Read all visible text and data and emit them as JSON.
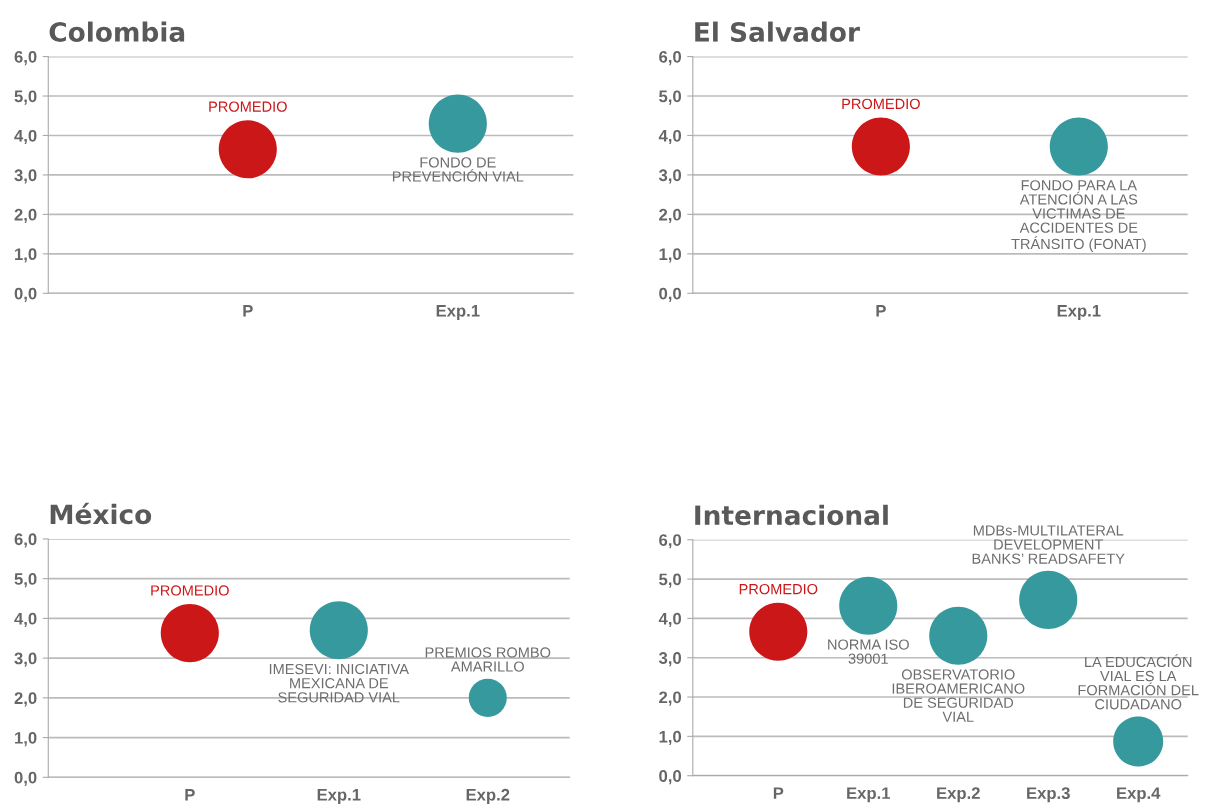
{
  "chart_data": [
    {
      "type": "bubble",
      "title": "Colombia",
      "categories": [
        "P",
        "Exp.1"
      ],
      "ylim": [
        0,
        6
      ],
      "yticks": [
        {
          "value": 0,
          "label": "0,0"
        },
        {
          "value": 1,
          "label": "1,0"
        },
        {
          "value": 2,
          "label": "2,0"
        },
        {
          "value": 3,
          "label": "3,0"
        },
        {
          "value": 4,
          "label": "4,0"
        },
        {
          "value": 5,
          "label": "5,0"
        },
        {
          "value": 6,
          "label": "6,0"
        }
      ],
      "grid": "y",
      "series": [
        {
          "name": "PROMEDIO",
          "color": "#cc1719",
          "x": [
            "P"
          ],
          "values": [
            3.65
          ],
          "sizes": [
            1
          ]
        },
        {
          "color": "#36999d",
          "x": [
            "Exp.1"
          ],
          "values": [
            4.3
          ],
          "sizes": [
            1
          ]
        }
      ],
      "annotations": [
        {
          "text": "FONDO DE\nPREVENCIÓN VIAL",
          "x": "Exp.1",
          "y": 4.3
        }
      ]
    },
    {
      "type": "bubble",
      "title": "El Salvador",
      "categories": [
        "P",
        "Exp.1"
      ],
      "ylim": [
        0,
        6
      ],
      "yticks": [
        {
          "value": 0,
          "label": "0,0"
        },
        {
          "value": 1,
          "label": "1,0"
        },
        {
          "value": 2,
          "label": "2,0"
        },
        {
          "value": 3,
          "label": "3,0"
        },
        {
          "value": 4,
          "label": "4,0"
        },
        {
          "value": 5,
          "label": "5,0"
        },
        {
          "value": 6,
          "label": "6,0"
        }
      ],
      "grid": "y",
      "series": [
        {
          "name": "PROMEDIO",
          "color": "#cc1719",
          "x": [
            "P"
          ],
          "values": [
            3.72
          ],
          "sizes": [
            1
          ]
        },
        {
          "color": "#36999d",
          "x": [
            "Exp.1"
          ],
          "values": [
            3.72
          ],
          "sizes": [
            1
          ]
        }
      ],
      "annotations": [
        {
          "text": "FONDO PARA LA\nATENCIÓN A LAS\nVICTIMAS DE\nACCIDENTES DE\nTRÁNSITO (FONAT)",
          "x": "Exp.1",
          "y": 3.72
        }
      ]
    },
    {
      "type": "bubble",
      "title": "México",
      "categories": [
        "P",
        "Exp.1",
        "Exp.2"
      ],
      "ylim": [
        0,
        6
      ],
      "yticks": [
        {
          "value": 0,
          "label": "0,0"
        },
        {
          "value": 1,
          "label": "1,0"
        },
        {
          "value": 2,
          "label": "2,0"
        },
        {
          "value": 3,
          "label": "3,0"
        },
        {
          "value": 4,
          "label": "4,0"
        },
        {
          "value": 5,
          "label": "5,0"
        },
        {
          "value": 6,
          "label": "6,0"
        }
      ],
      "grid": "y",
      "series": [
        {
          "name": "PROMEDIO",
          "color": "#cc1719",
          "x": [
            "P"
          ],
          "values": [
            3.63
          ],
          "sizes": [
            1
          ]
        },
        {
          "color": "#36999d",
          "x": [
            "Exp.1",
            "Exp.2"
          ],
          "values": [
            3.7,
            2.0
          ],
          "sizes": [
            1,
            0.43
          ]
        }
      ],
      "annotations": [
        {
          "text": "IMESEVI: INICIATIVA\nMEXICANA DE\nSEGURIDAD VIAL",
          "x": "Exp.1",
          "y": 3.7
        },
        {
          "text": "PREMIOS ROMBO\nAMARILLO",
          "x": "Exp.2",
          "y": 2.0
        }
      ]
    },
    {
      "type": "bubble",
      "title": "Internacional",
      "categories": [
        "P",
        "Exp.1",
        "Exp.2",
        "Exp.3",
        "Exp.4"
      ],
      "ylim": [
        0,
        6
      ],
      "yticks": [
        {
          "value": 0,
          "label": "0,0"
        },
        {
          "value": 1,
          "label": "1,0"
        },
        {
          "value": 2,
          "label": "2,0"
        },
        {
          "value": 3,
          "label": "3,0"
        },
        {
          "value": 4,
          "label": "4,0"
        },
        {
          "value": 5,
          "label": "5,0"
        },
        {
          "value": 6,
          "label": "6,0"
        }
      ],
      "grid": "y",
      "series": [
        {
          "name": "PROMEDIO",
          "color": "#cc1719",
          "x": [
            "P"
          ],
          "values": [
            3.66
          ],
          "sizes": [
            1
          ]
        },
        {
          "color": "#36999d",
          "x": [
            "Exp.1",
            "Exp.2",
            "Exp.3",
            "Exp.4"
          ],
          "values": [
            4.32,
            3.56,
            4.47,
            0.87
          ],
          "sizes": [
            1,
            1,
            1,
            0.74
          ]
        }
      ],
      "annotations": [
        {
          "text": "NORMA ISO\n39001",
          "x": "Exp.1",
          "y": 4.32
        },
        {
          "text": "OBSERVATORIO\nIBEROAMERICANO\nDE SEGURIDAD\nVIAL",
          "x": "Exp.2",
          "y": 3.56
        },
        {
          "text": "MDBs-MULTILATERAL\nDEVELOPMENT\nBANKS’ READSAFETY",
          "x": "Exp.3",
          "y": 4.47
        },
        {
          "text": "LA EDUCACIÓN\nVIAL ES LA\nFORMACIÓN DEL\nCIUDADANO",
          "x": "Exp.4",
          "y": 0.87
        }
      ]
    }
  ]
}
